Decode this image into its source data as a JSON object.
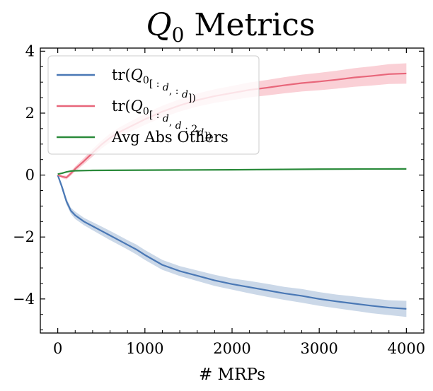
{
  "chart_data": {
    "type": "line",
    "title_main": "Q",
    "title_sub": "0",
    "title_rest": " Metrics",
    "xlabel": "# MRPs",
    "ylabel": "",
    "xlim": [
      -200,
      4200
    ],
    "ylim": [
      -5.1,
      4.1
    ],
    "xticks": [
      0,
      1000,
      2000,
      3000,
      4000
    ],
    "xtick_labels": [
      "0",
      "1000",
      "2000",
      "3000",
      "4000"
    ],
    "yticks": [
      -4,
      -2,
      0,
      2,
      4
    ],
    "ytick_labels": [
      "−4",
      "−2",
      "0",
      "2",
      "4"
    ],
    "grid": false,
    "legend_position": "top-left",
    "series": [
      {
        "name": "tr(Q0[:d, :d])",
        "legend_parts": [
          "tr(",
          "Q",
          "0",
          "[ : ",
          "d",
          ",  : ",
          "d",
          "])"
        ],
        "color": "#4a78b5",
        "band_color": "#c5d4e6",
        "x": [
          0,
          50,
          100,
          150,
          200,
          300,
          400,
          500,
          600,
          700,
          800,
          900,
          1000,
          1200,
          1400,
          1600,
          1800,
          2000,
          2200,
          2400,
          2600,
          2800,
          3000,
          3200,
          3400,
          3600,
          3800,
          4000
        ],
        "y": [
          0,
          -0.4,
          -0.85,
          -1.15,
          -1.3,
          -1.5,
          -1.65,
          -1.8,
          -1.95,
          -2.1,
          -2.25,
          -2.4,
          -2.58,
          -2.9,
          -3.1,
          -3.25,
          -3.4,
          -3.52,
          -3.62,
          -3.72,
          -3.82,
          -3.9,
          -4.0,
          -4.08,
          -4.15,
          -4.22,
          -4.28,
          -4.32
        ],
        "y_lower": [
          0,
          -0.5,
          -0.95,
          -1.25,
          -1.42,
          -1.62,
          -1.78,
          -1.94,
          -2.1,
          -2.25,
          -2.4,
          -2.56,
          -2.74,
          -3.06,
          -3.26,
          -3.42,
          -3.58,
          -3.7,
          -3.82,
          -3.93,
          -4.03,
          -4.12,
          -4.22,
          -4.3,
          -4.38,
          -4.46,
          -4.52,
          -4.58
        ],
        "y_upper": [
          0,
          -0.3,
          -0.75,
          -1.05,
          -1.18,
          -1.38,
          -1.52,
          -1.66,
          -1.8,
          -1.95,
          -2.1,
          -2.24,
          -2.42,
          -2.74,
          -2.94,
          -3.08,
          -3.22,
          -3.34,
          -3.42,
          -3.51,
          -3.61,
          -3.68,
          -3.78,
          -3.86,
          -3.92,
          -3.98,
          -4.04,
          -4.06
        ]
      },
      {
        "name": "tr(Q0[:d, d:2d])",
        "legend_parts": [
          "tr(",
          "Q",
          "0",
          "[ : ",
          "d",
          ",  ",
          "d",
          " : 2",
          "d",
          "])"
        ],
        "color": "#e8667a",
        "band_color": "#f9cbd2",
        "x": [
          0,
          50,
          100,
          150,
          200,
          300,
          400,
          500,
          600,
          700,
          800,
          900,
          1000,
          1200,
          1400,
          1600,
          1800,
          2000,
          2200,
          2400,
          2600,
          2800,
          3000,
          3200,
          3400,
          3600,
          3800,
          4000
        ],
        "y": [
          0,
          -0.05,
          -0.08,
          0.05,
          0.2,
          0.45,
          0.72,
          0.98,
          1.2,
          1.38,
          1.52,
          1.66,
          1.8,
          2.05,
          2.25,
          2.42,
          2.55,
          2.65,
          2.75,
          2.82,
          2.9,
          2.97,
          3.02,
          3.08,
          3.15,
          3.2,
          3.26,
          3.28
        ],
        "y_lower": [
          0,
          -0.1,
          -0.14,
          -0.02,
          0.12,
          0.35,
          0.6,
          0.85,
          1.06,
          1.23,
          1.36,
          1.49,
          1.62,
          1.86,
          2.05,
          2.21,
          2.33,
          2.42,
          2.51,
          2.57,
          2.64,
          2.7,
          2.74,
          2.79,
          2.85,
          2.89,
          2.94,
          2.95
        ],
        "y_upper": [
          0,
          0.0,
          -0.02,
          0.12,
          0.28,
          0.55,
          0.84,
          1.11,
          1.34,
          1.53,
          1.68,
          1.83,
          1.98,
          2.24,
          2.45,
          2.63,
          2.77,
          2.88,
          2.99,
          3.07,
          3.16,
          3.24,
          3.3,
          3.37,
          3.45,
          3.51,
          3.58,
          3.61
        ]
      },
      {
        "name": "Avg Abs Others",
        "legend_parts": [
          "Avg Abs Others"
        ],
        "color": "#2a8a3a",
        "x": [
          0,
          50,
          100,
          150,
          200,
          400,
          1000,
          2000,
          3000,
          4000
        ],
        "y": [
          0.03,
          0.06,
          0.1,
          0.13,
          0.14,
          0.15,
          0.16,
          0.17,
          0.19,
          0.2
        ]
      }
    ]
  }
}
